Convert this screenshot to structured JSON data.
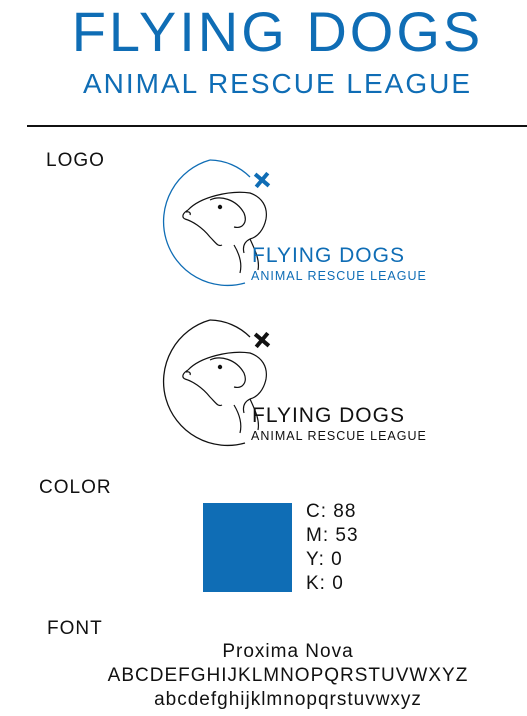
{
  "header": {
    "title": "FLYING DOGS",
    "subtitle": "ANIMAL RESCUE LEAGUE"
  },
  "sections": {
    "logo_label": "LOGO",
    "color_label": "COLOR",
    "font_label": "FONT"
  },
  "logo": {
    "name": "FLYING DOGS",
    "tagline": "ANIMAL RESCUE LEAGUE",
    "variants": [
      "color",
      "black"
    ],
    "icon": "dog-head-plane-icon"
  },
  "color": {
    "hex": "#0f6db5",
    "c": "C: 88",
    "m": "M: 53",
    "y": "Y: 0",
    "k": "K: 0"
  },
  "font": {
    "name": "Proxima Nova",
    "uppercase": "ABCDEFGHIJKLMNOPQRSTUVWXYZ",
    "lowercase": "abcdefghijklmnopqrstuvwxyz"
  }
}
